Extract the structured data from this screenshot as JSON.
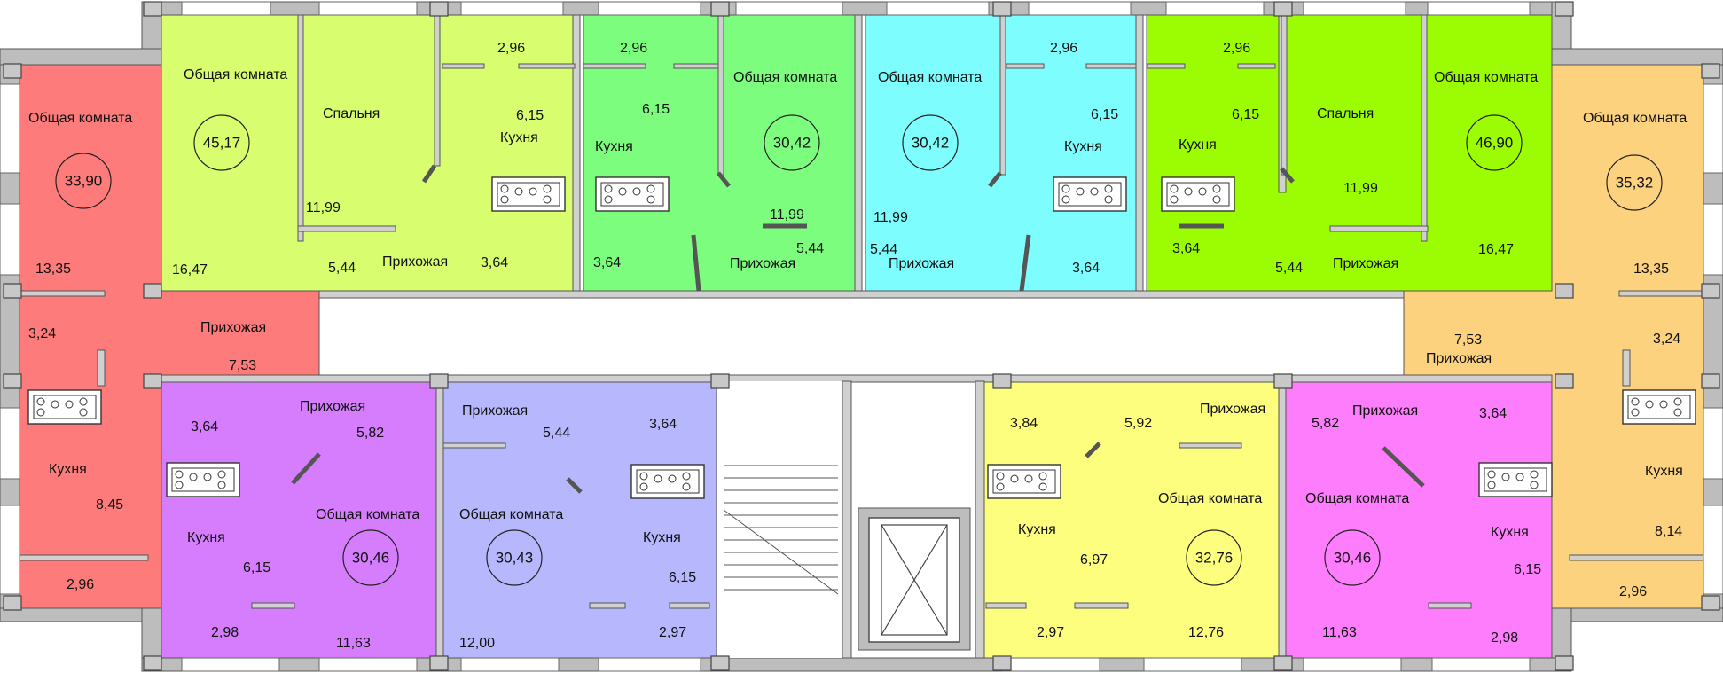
{
  "colors": {
    "a1": "#fd7b7b",
    "a2": "#d8fd6e",
    "a3": "#7dfd7e",
    "a4": "#7dfdfd",
    "a5": "#9cfd02",
    "a6": "#fdd27e",
    "a7": "#d57dfd",
    "a8": "#b7b7fd",
    "a9": "#fdfd7e",
    "a10": "#fd7dfd",
    "walls": "#bdbdbd",
    "outline": "#555555"
  },
  "apartments": [
    {
      "id": "a1",
      "color": "a1",
      "total": "33,90",
      "labels": [
        "Общая комната",
        "Прихожая",
        "Кухня"
      ],
      "areas": [
        "13,35",
        "3,24",
        "7,53",
        "8,45",
        "2,96"
      ]
    },
    {
      "id": "a2",
      "color": "a2",
      "total": "45,17",
      "labels": [
        "Общая комната",
        "Спальня",
        "Кухня",
        "Прихожая"
      ],
      "areas": [
        "2,96",
        "6,15",
        "11,99",
        "16,47",
        "5,44",
        "3,64"
      ]
    },
    {
      "id": "a3",
      "color": "a3",
      "total": "30,42",
      "labels": [
        "Общая комната",
        "Кухня",
        "Прихожая"
      ],
      "areas": [
        "2,96",
        "6,15",
        "11,99",
        "5,44",
        "3,64"
      ]
    },
    {
      "id": "a4",
      "color": "a4",
      "total": "30,42",
      "labels": [
        "Общая комната",
        "Кухня",
        "Прихожая"
      ],
      "areas": [
        "2,96",
        "6,15",
        "11,99",
        "5,44",
        "3,64"
      ]
    },
    {
      "id": "a5",
      "color": "a5",
      "total": "46,90",
      "labels": [
        "Общая комната",
        "Спальня",
        "Кухня",
        "Прихожая"
      ],
      "areas": [
        "2,96",
        "6,15",
        "11,99",
        "3,64",
        "5,44",
        "16,47"
      ]
    },
    {
      "id": "a6",
      "color": "a6",
      "total": "35,32",
      "labels": [
        "Общая комната",
        "Прихожая",
        "Кухня"
      ],
      "areas": [
        "13,35",
        "7,53",
        "3,24",
        "8,14",
        "2,96"
      ]
    },
    {
      "id": "a7",
      "color": "a7",
      "total": "30,46",
      "labels": [
        "Прихожая",
        "Общая комната",
        "Кухня"
      ],
      "areas": [
        "3,64",
        "5,82",
        "6,15",
        "2,98",
        "11,63"
      ]
    },
    {
      "id": "a8",
      "color": "a8",
      "total": "30,43",
      "labels": [
        "Прихожая",
        "Общая комната",
        "Кухня"
      ],
      "areas": [
        "5,44",
        "3,64",
        "6,15",
        "12,00",
        "2,97"
      ]
    },
    {
      "id": "a9",
      "color": "a9",
      "total": "32,76",
      "labels": [
        "Прихожая",
        "Кухня",
        "Общая комната"
      ],
      "areas": [
        "3,84",
        "5,92",
        "6,97",
        "2,97",
        "12,76"
      ]
    },
    {
      "id": "a10",
      "color": "a10",
      "total": "30,46",
      "labels": [
        "Прихожая",
        "Общая комната",
        "Кухня"
      ],
      "areas": [
        "5,82",
        "3,64",
        "6,15",
        "11,63",
        "2,98"
      ]
    }
  ]
}
